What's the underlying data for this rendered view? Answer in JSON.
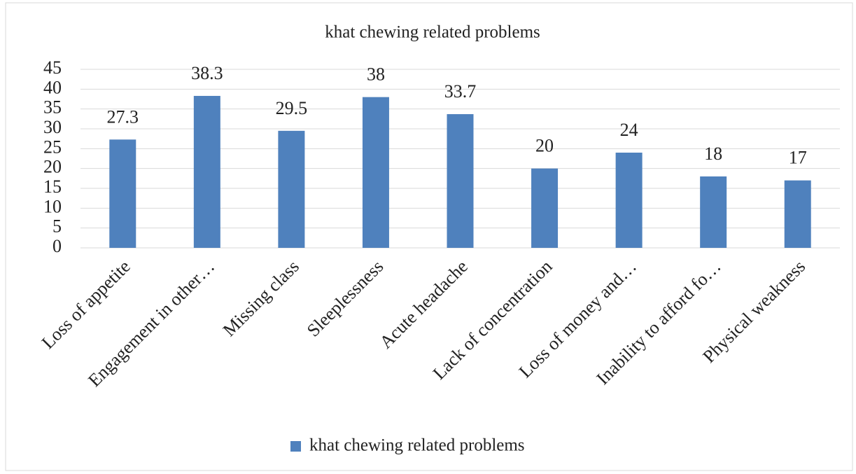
{
  "chart_data": {
    "type": "bar",
    "title": "khat chewing related problems",
    "categories": [
      "Loss of appetite",
      "Engagement in other…",
      "Missing class",
      "Sleeplessness",
      "Acute headache",
      "Lack of concentration",
      "Loss of money and…",
      "Inability to afford fo…",
      "Physical weakness"
    ],
    "series": [
      {
        "name": "khat chewing related problems",
        "color": "#4f81bd",
        "values": [
          27.3,
          38.3,
          29.5,
          38,
          33.7,
          20,
          24,
          18,
          17
        ]
      }
    ],
    "ylim": [
      0,
      45
    ],
    "yticks": [
      0,
      5,
      10,
      15,
      20,
      25,
      30,
      35,
      40,
      45
    ],
    "grid": true,
    "legend": "bottom"
  }
}
